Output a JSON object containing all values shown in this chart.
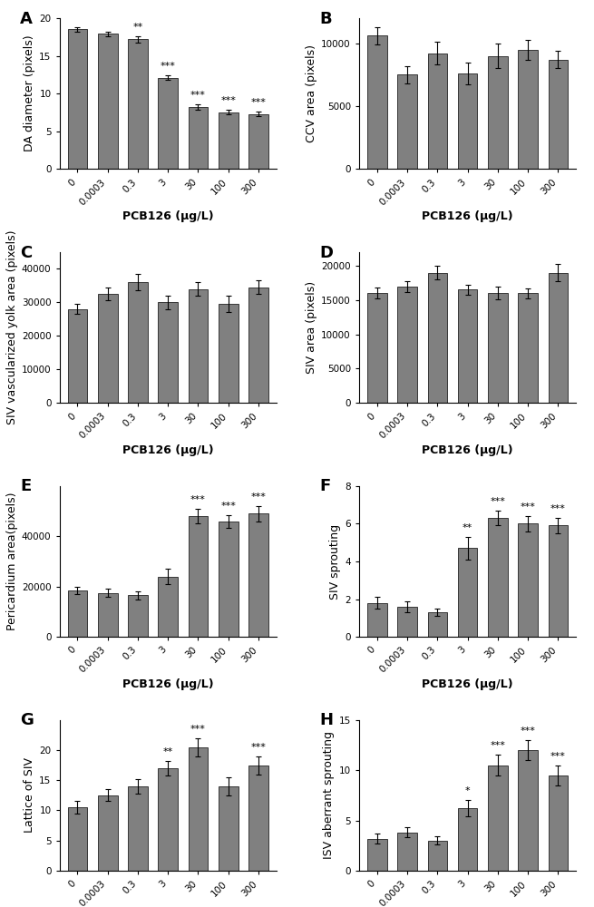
{
  "categories": [
    "0",
    "0.0003",
    "0.3",
    "3",
    "30",
    "100",
    "300"
  ],
  "bar_color": "#808080",
  "bar_color_dark": "#6e6e6e",
  "panels": [
    {
      "label": "A",
      "ylabel": "DA diameter (pixels)",
      "ylim": [
        0,
        20
      ],
      "yticks": [
        0,
        5,
        10,
        15,
        20
      ],
      "values": [
        18.5,
        17.9,
        17.2,
        12.1,
        8.2,
        7.5,
        7.3
      ],
      "errors": [
        0.3,
        0.3,
        0.4,
        0.3,
        0.4,
        0.3,
        0.3
      ],
      "sig": [
        "",
        "",
        "**",
        "***",
        "***",
        "***",
        "***"
      ]
    },
    {
      "label": "B",
      "ylabel": "CCV area (pixels)",
      "ylim": [
        0,
        12000
      ],
      "yticks": [
        0,
        5000,
        10000
      ],
      "values": [
        10600,
        7500,
        9200,
        7600,
        9000,
        9500,
        8700
      ],
      "errors": [
        700,
        700,
        900,
        900,
        1000,
        800,
        700
      ],
      "sig": [
        "",
        "",
        "",
        "",
        "",
        "",
        ""
      ]
    },
    {
      "label": "C",
      "ylabel": "SIV vascularized yolk area (pixels)",
      "ylim": [
        0,
        45000
      ],
      "yticks": [
        0,
        10000,
        20000,
        30000,
        40000
      ],
      "values": [
        28000,
        32500,
        36000,
        30000,
        34000,
        29500,
        34500
      ],
      "errors": [
        1500,
        2000,
        2500,
        2000,
        2000,
        2500,
        2000
      ],
      "sig": [
        "",
        "",
        "",
        "",
        "",
        "",
        ""
      ]
    },
    {
      "label": "D",
      "ylabel": "SIV area (pixels)",
      "ylim": [
        0,
        22000
      ],
      "yticks": [
        0,
        5000,
        10000,
        15000,
        20000
      ],
      "values": [
        16000,
        17000,
        19000,
        16500,
        16000,
        16000,
        19000
      ],
      "errors": [
        800,
        800,
        1000,
        700,
        900,
        700,
        1200
      ],
      "sig": [
        "",
        "",
        "",
        "",
        "",
        "",
        ""
      ]
    },
    {
      "label": "E",
      "ylabel": "Pericardium area(pixels)",
      "ylim": [
        0,
        60000
      ],
      "yticks": [
        0,
        20000,
        40000
      ],
      "values": [
        18500,
        17500,
        16500,
        24000,
        48000,
        46000,
        49000
      ],
      "errors": [
        1500,
        1500,
        1500,
        3000,
        3000,
        2500,
        3000
      ],
      "sig": [
        "",
        "",
        "",
        "",
        "***",
        "***",
        "***"
      ]
    },
    {
      "label": "F",
      "ylabel": "SIV sprouting",
      "ylim": [
        0,
        8
      ],
      "yticks": [
        0,
        2,
        4,
        6,
        8
      ],
      "values": [
        1.8,
        1.6,
        1.3,
        4.7,
        6.3,
        6.0,
        5.9
      ],
      "errors": [
        0.3,
        0.3,
        0.2,
        0.6,
        0.4,
        0.4,
        0.4
      ],
      "sig": [
        "",
        "",
        "",
        "**",
        "***",
        "***",
        "***"
      ]
    },
    {
      "label": "G",
      "ylabel": "Lattice of SIV",
      "ylim": [
        0,
        25
      ],
      "yticks": [
        0,
        5,
        10,
        15,
        20
      ],
      "values": [
        10.5,
        12.5,
        14.0,
        17.0,
        20.5,
        14.0,
        17.5
      ],
      "errors": [
        1.0,
        1.0,
        1.2,
        1.2,
        1.5,
        1.5,
        1.5
      ],
      "sig": [
        "",
        "",
        "",
        "**",
        "***",
        "",
        "***"
      ]
    },
    {
      "label": "H",
      "ylabel": "ISV aberrant sprouting",
      "ylim": [
        0,
        15
      ],
      "yticks": [
        0,
        5,
        10,
        15
      ],
      "values": [
        3.2,
        3.8,
        3.0,
        6.2,
        10.5,
        12.0,
        9.5
      ],
      "errors": [
        0.5,
        0.5,
        0.4,
        0.8,
        1.0,
        1.0,
        1.0
      ],
      "sig": [
        "",
        "",
        "",
        "*",
        "***",
        "***",
        "***"
      ]
    }
  ],
  "xlabel": "PCB126 (μg/L)",
  "xlabel_bold": true,
  "label_fontsize": 9,
  "tick_fontsize": 7.5,
  "sig_fontsize": 8,
  "panel_label_fontsize": 13
}
